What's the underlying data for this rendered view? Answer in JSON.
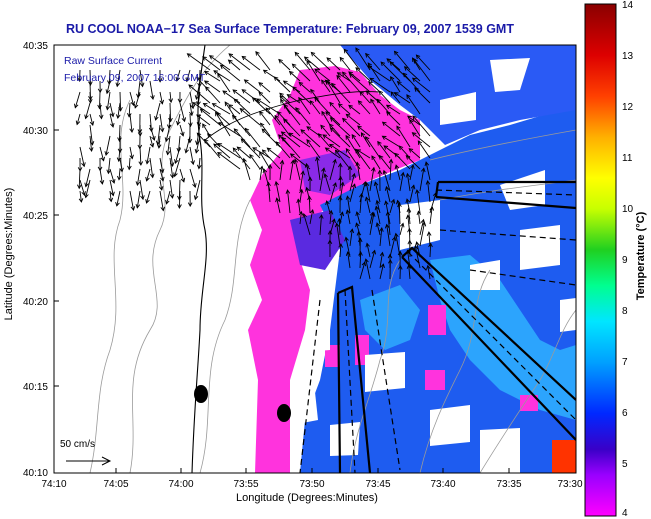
{
  "title": "RU COOL  NOAA−17  Sea Surface Temperature:  February 09, 2007 1539 GMT",
  "overlay": {
    "legend_line1": "Raw Surface Current",
    "legend_line2": "February 09, 2007 16:00 GMT",
    "scale_label": "50 cm/s"
  },
  "axes": {
    "xlabel": "Longitude (Degrees:Minutes)",
    "ylabel": "Latitude (Degrees:Minutes)",
    "xticks": [
      "74:10",
      "74:05",
      "74:00",
      "73:55",
      "73:50",
      "73:45",
      "73:40",
      "73:35",
      "73:30"
    ],
    "yticks": [
      "40:35",
      "40:30",
      "40:25",
      "40:20",
      "40:15",
      "40:10"
    ]
  },
  "colorbar": {
    "title": "Temperature (°C)",
    "ticks": [
      "14",
      "13",
      "12",
      "11",
      "10",
      "9",
      "8",
      "7",
      "6",
      "5",
      "4"
    ],
    "min": 4,
    "max": 14
  },
  "colors": {
    "title": "#1a1aa8",
    "magenta": "#ff33dd",
    "blue": "#1e5cf0",
    "cyan": "#2fb0ff"
  }
}
